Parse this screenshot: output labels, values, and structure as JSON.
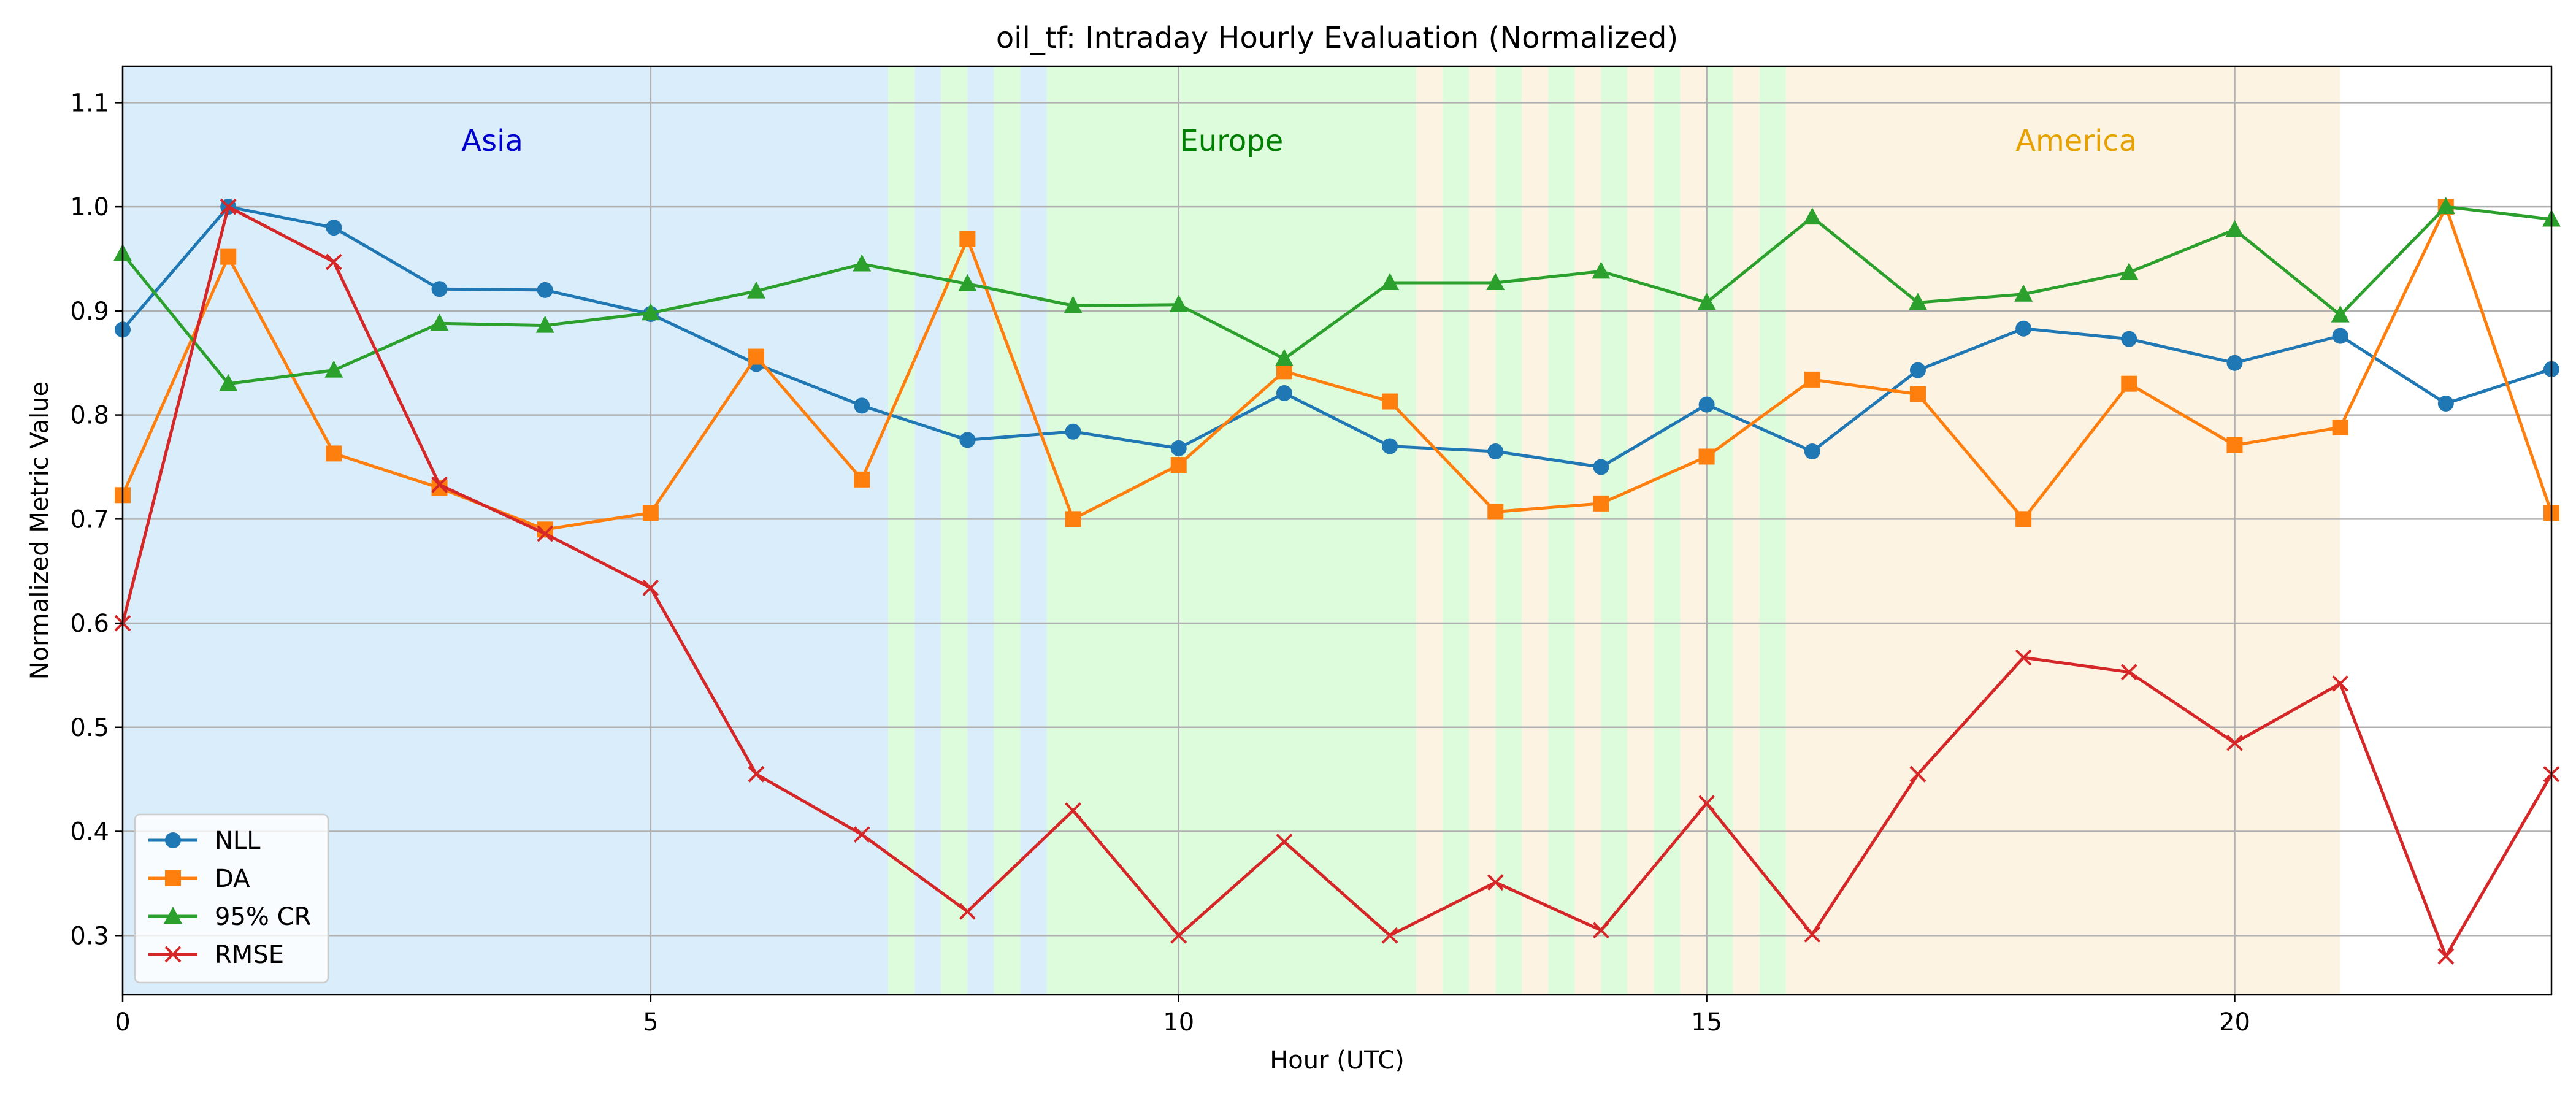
{
  "chart_data": {
    "type": "line",
    "title": "oil_tf: Intraday Hourly Evaluation (Normalized)",
    "xlabel": "Hour (UTC)",
    "ylabel": "Normalized Metric Value",
    "xlim": [
      0,
      23
    ],
    "ylim": [
      0.243,
      1.135
    ],
    "xticks": [
      0,
      5,
      10,
      15,
      20
    ],
    "yticks": [
      0.3,
      0.4,
      0.5,
      0.6,
      0.7,
      0.8,
      0.9,
      1.0,
      1.1
    ],
    "grid": true,
    "legend_position": "lower-left",
    "x": [
      0,
      1,
      2,
      3,
      4,
      5,
      6,
      7,
      8,
      9,
      10,
      11,
      12,
      13,
      14,
      15,
      16,
      17,
      18,
      19,
      20,
      21,
      22,
      23
    ],
    "series": [
      {
        "name": "NLL",
        "color": "#1f77b4",
        "marker": "circle",
        "values": [
          0.882,
          1.0,
          0.98,
          0.921,
          0.92,
          0.897,
          0.849,
          0.809,
          0.776,
          0.784,
          0.768,
          0.821,
          0.77,
          0.765,
          0.75,
          0.81,
          0.765,
          0.843,
          0.883,
          0.873,
          0.85,
          0.876,
          0.811,
          0.844
        ]
      },
      {
        "name": "DA",
        "color": "#ff7f0e",
        "marker": "square",
        "values": [
          0.723,
          0.952,
          0.763,
          0.73,
          0.69,
          0.706,
          0.856,
          0.738,
          0.969,
          0.7,
          0.752,
          0.842,
          0.813,
          0.707,
          0.715,
          0.76,
          0.834,
          0.82,
          0.7,
          0.83,
          0.771,
          0.788,
          1.0,
          0.706
        ]
      },
      {
        "name": "95% CR",
        "color": "#2ca02c",
        "marker": "triangle",
        "values": [
          0.955,
          0.83,
          0.843,
          0.888,
          0.886,
          0.898,
          0.919,
          0.945,
          0.926,
          0.905,
          0.906,
          0.854,
          0.927,
          0.927,
          0.938,
          0.908,
          0.99,
          0.908,
          0.916,
          0.937,
          0.978,
          0.896,
          1.0,
          0.988
        ]
      },
      {
        "name": "RMSE",
        "color": "#d62728",
        "marker": "x",
        "values": [
          0.6,
          1.0,
          0.947,
          0.733,
          0.686,
          0.634,
          0.455,
          0.397,
          0.323,
          0.42,
          0.3,
          0.39,
          0.3,
          0.351,
          0.305,
          0.427,
          0.301,
          0.455,
          0.567,
          0.553,
          0.485,
          0.542,
          0.28,
          0.455
        ]
      }
    ],
    "regions": [
      {
        "label": "Asia",
        "color": "#0000cc",
        "fill": "#d9eefa",
        "start": 0,
        "end": 8.75,
        "label_x": 3.5
      },
      {
        "label": "Europe",
        "color": "#008000",
        "fill": "#dcfcdc",
        "start": 7.25,
        "end": 15.75,
        "label_x": 10.5
      },
      {
        "label": "America",
        "color": "#e6a000",
        "fill": "#fdf3e3",
        "start": 12.25,
        "end": 21,
        "label_x": 18.5
      }
    ],
    "background_spans": [
      {
        "start": 0,
        "end": 7.25,
        "fill": "#d9eefa"
      },
      {
        "start": 7.25,
        "end": 7.5,
        "fill": "#dcfcdc"
      },
      {
        "start": 7.5,
        "end": 7.75,
        "fill": "#d9eefa"
      },
      {
        "start": 7.75,
        "end": 8.0,
        "fill": "#dcfcdc"
      },
      {
        "start": 8.0,
        "end": 8.25,
        "fill": "#d9eefa"
      },
      {
        "start": 8.25,
        "end": 8.5,
        "fill": "#dcfcdc"
      },
      {
        "start": 8.5,
        "end": 8.75,
        "fill": "#d9eefa"
      },
      {
        "start": 8.75,
        "end": 12.25,
        "fill": "#dcfcdc"
      },
      {
        "start": 12.25,
        "end": 12.5,
        "fill": "#fdf3e3"
      },
      {
        "start": 12.5,
        "end": 12.75,
        "fill": "#dcfcdc"
      },
      {
        "start": 12.75,
        "end": 13.0,
        "fill": "#fdf3e3"
      },
      {
        "start": 13.0,
        "end": 13.25,
        "fill": "#dcfcdc"
      },
      {
        "start": 13.25,
        "end": 13.5,
        "fill": "#fdf3e3"
      },
      {
        "start": 13.5,
        "end": 13.75,
        "fill": "#dcfcdc"
      },
      {
        "start": 13.75,
        "end": 14.0,
        "fill": "#fdf3e3"
      },
      {
        "start": 14.0,
        "end": 14.25,
        "fill": "#dcfcdc"
      },
      {
        "start": 14.25,
        "end": 14.5,
        "fill": "#fdf3e3"
      },
      {
        "start": 14.5,
        "end": 14.75,
        "fill": "#dcfcdc"
      },
      {
        "start": 14.75,
        "end": 15.0,
        "fill": "#fdf3e3"
      },
      {
        "start": 15.0,
        "end": 15.25,
        "fill": "#dcfcdc"
      },
      {
        "start": 15.25,
        "end": 15.5,
        "fill": "#fdf3e3"
      },
      {
        "start": 15.5,
        "end": 15.75,
        "fill": "#dcfcdc"
      },
      {
        "start": 15.75,
        "end": 21,
        "fill": "#fdf3e3"
      }
    ]
  }
}
